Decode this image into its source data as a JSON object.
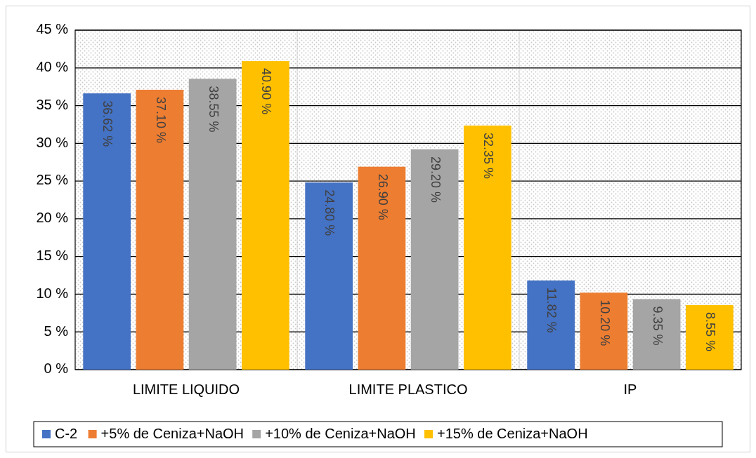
{
  "chart_data": {
    "type": "bar",
    "categories": [
      "LIMITE LIQUIDO",
      "LIMITE PLASTICO",
      "IP"
    ],
    "series": [
      {
        "name": "C-2",
        "color": "#4472c4",
        "values": [
          36.62,
          24.8,
          11.82
        ],
        "value_labels": [
          "36.62 %",
          "24.80 %",
          "11.82 %"
        ]
      },
      {
        "name": "+5% de Ceniza+NaOH",
        "color": "#ed7d31",
        "values": [
          37.1,
          26.9,
          10.2
        ],
        "value_labels": [
          "37.10 %",
          "26.90 %",
          "10.20 %"
        ]
      },
      {
        "name": "+10% de Ceniza+NaOH",
        "color": "#a5a5a5",
        "values": [
          38.55,
          29.2,
          9.35
        ],
        "value_labels": [
          "38.55 %",
          "29.20 %",
          "9.35 %"
        ]
      },
      {
        "name": "+15% de Ceniza+NaOH",
        "color": "#ffc000",
        "values": [
          40.9,
          32.35,
          8.55
        ],
        "value_labels": [
          "40.90 %",
          "32.35 %",
          "8.55 %"
        ]
      }
    ],
    "ylim": [
      0,
      45
    ],
    "yticks": [
      {
        "value": 0,
        "label": "0 %"
      },
      {
        "value": 5,
        "label": "5 %"
      },
      {
        "value": 10,
        "label": "10 %"
      },
      {
        "value": 15,
        "label": "15 %"
      },
      {
        "value": 20,
        "label": "20 %"
      },
      {
        "value": 25,
        "label": "25 %"
      },
      {
        "value": 30,
        "label": "30 %"
      },
      {
        "value": 35,
        "label": "35 %"
      },
      {
        "value": 40,
        "label": "40 %"
      },
      {
        "value": 45,
        "label": "45 %"
      }
    ],
    "grid": true,
    "legend": "bottom"
  }
}
